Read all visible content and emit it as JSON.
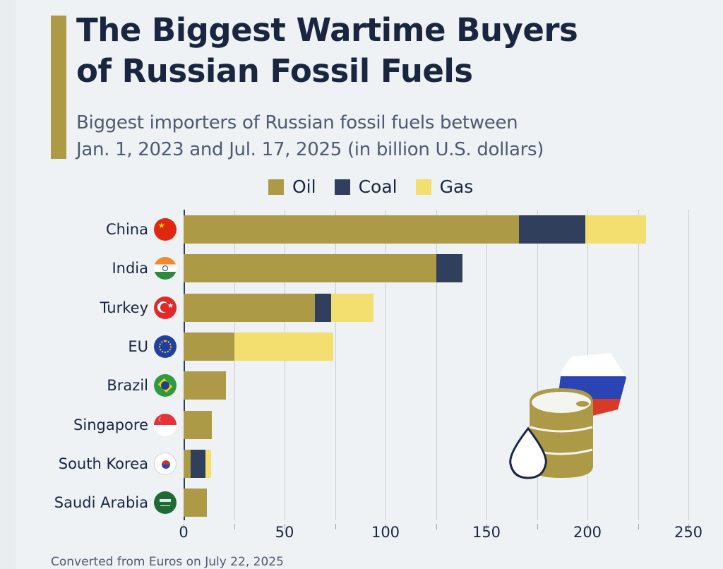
{
  "header": {
    "title_line1": "The Biggest Wartime Buyers",
    "title_line2": "of Russian Fossil Fuels",
    "subtitle_line1": "Biggest importers of Russian fossil fuels between",
    "subtitle_line2": "Jan. 1, 2023 and Jul. 17, 2025 (in billion U.S. dollars)"
  },
  "legend": [
    {
      "label": "Oil",
      "color": "#ad9a47"
    },
    {
      "label": "Coal",
      "color": "#2f3f5c"
    },
    {
      "label": "Gas",
      "color": "#f2df6f"
    }
  ],
  "footer": {
    "note": "Converted from Euros on July 22, 2025"
  },
  "illustration": {
    "icons": [
      "oil-barrel-icon",
      "oil-drop-icon",
      "russia-flag-hexagon-icon"
    ]
  },
  "colors": {
    "oil": "#ad9a47",
    "coal": "#2f3f5c",
    "gas": "#f2df6f",
    "title": "#1a2640",
    "subtitle": "#4e5a70",
    "background": "#eef2f5"
  },
  "chart_data": {
    "type": "bar",
    "orientation": "horizontal",
    "stacked": true,
    "title": "The Biggest Wartime Buyers of Russian Fossil Fuels",
    "subtitle": "Biggest importers of Russian fossil fuels between Jan. 1, 2023 and Jul. 17, 2025 (in billion U.S. dollars)",
    "xlabel": "",
    "ylabel": "",
    "xlim": [
      0,
      250
    ],
    "x_ticks": [
      0,
      50,
      100,
      150,
      200,
      250
    ],
    "grid": true,
    "grid_step": 25,
    "legend_position": "top",
    "categories": [
      "China",
      "India",
      "Turkey",
      "EU",
      "Brazil",
      "Singapore",
      "South Korea",
      "Saudi Arabia"
    ],
    "series": [
      {
        "name": "Oil",
        "color": "#ad9a47",
        "values": [
          166,
          125,
          65,
          25,
          21,
          14,
          3.5,
          11.5
        ]
      },
      {
        "name": "Coal",
        "color": "#2f3f5c",
        "values": [
          33,
          13,
          8,
          0,
          0,
          0,
          7.5,
          0
        ]
      },
      {
        "name": "Gas",
        "color": "#f2df6f",
        "values": [
          30,
          0,
          21,
          49,
          0,
          0,
          2.5,
          0
        ]
      }
    ],
    "note": "Converted from Euros on July 22, 2025"
  }
}
